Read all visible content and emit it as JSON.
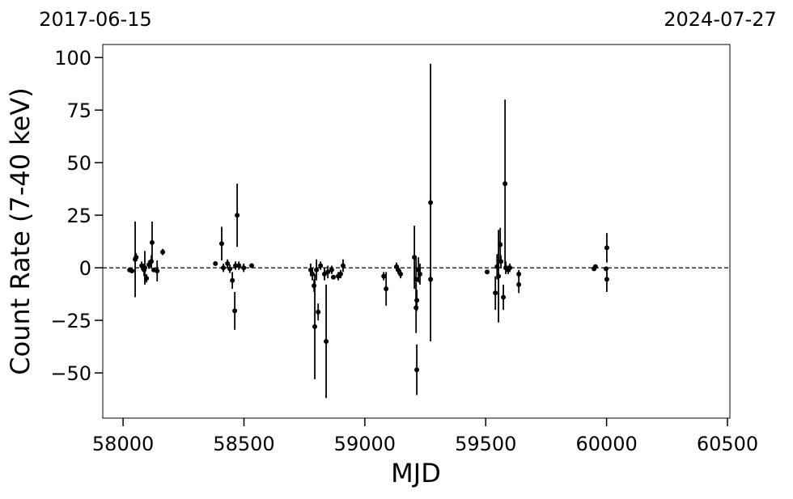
{
  "chart_data": {
    "type": "errorbar",
    "top_labels": [
      "2017-06-15",
      "2024-07-27"
    ],
    "xlabel": "MJD",
    "ylabel": "Count Rate (7-40 keV)",
    "xlim": [
      57916,
      60510
    ],
    "ylim": [
      -71.5,
      106.2
    ],
    "xticks": [
      58000,
      58500,
      59000,
      59500,
      60000,
      60500
    ],
    "yticks": [
      {
        "value": -50,
        "label": "−50"
      },
      {
        "value": -25,
        "label": "−25"
      },
      0,
      25,
      50,
      75,
      100
    ],
    "hline": 0,
    "color": "#000000",
    "series": [
      {
        "x": [
          58027,
          58037,
          58050,
          58054,
          58077,
          58087,
          58090,
          58097,
          58107,
          58120,
          58117,
          58127,
          58141,
          58164,
          58382,
          58408,
          58415,
          58432,
          58442,
          58452,
          58462,
          58465,
          58472,
          58479,
          58499,
          58532,
          58776,
          58783,
          58790,
          58793,
          58800,
          58807,
          58817,
          58833,
          58840,
          58847,
          58863,
          58870,
          58890,
          58900,
          58910,
          59078,
          59088,
          59131,
          59138,
          59148,
          59205,
          59212,
          59212,
          59215,
          59215,
          59222,
          59228,
          59272,
          59272,
          59506,
          59540,
          59547,
          59553,
          59560,
          59563,
          59573,
          59580,
          59583,
          59593,
          59600,
          59637,
          59637,
          59948,
          59954,
          59998,
          60001,
          60001
        ],
        "values": [
          -1,
          -1.5,
          4,
          5,
          1,
          -1,
          0,
          -5,
          1.5,
          12,
          3,
          -1,
          -1.5,
          7.5,
          2,
          11.5,
          0,
          2,
          -0.5,
          -6,
          -20.5,
          1,
          25,
          1,
          0,
          1,
          -1,
          -3,
          -8.5,
          -28,
          -1,
          -21,
          1,
          -3,
          -35,
          -2,
          -1,
          -4.5,
          -4,
          -3,
          1,
          -4,
          -10,
          0.5,
          -1,
          -3,
          5,
          -5.5,
          -19,
          -15.5,
          -48.5,
          -1,
          -3,
          31,
          -5.5,
          -2,
          -12,
          0.5,
          -4,
          11,
          3,
          -14,
          40,
          0,
          -1,
          0,
          -3,
          -8,
          -0.5,
          0.5,
          -0.5,
          9.5,
          -5.5
        ],
        "errors": [
          1,
          1,
          18,
          2,
          2,
          3,
          8,
          2,
          2,
          10,
          3,
          1,
          5,
          1.5,
          1,
          8,
          2,
          2,
          2,
          4,
          9,
          2,
          15,
          2,
          2,
          1,
          3,
          3,
          3,
          25,
          5,
          4,
          2,
          3,
          27,
          3,
          2,
          1,
          2,
          2,
          3,
          2,
          8,
          2,
          2,
          2,
          15,
          10,
          12,
          5,
          12,
          6,
          5,
          66,
          2,
          1,
          8,
          6,
          22,
          8,
          3,
          6,
          40,
          3,
          2,
          2,
          2,
          4,
          1,
          1,
          1,
          7,
          6
        ]
      }
    ]
  }
}
